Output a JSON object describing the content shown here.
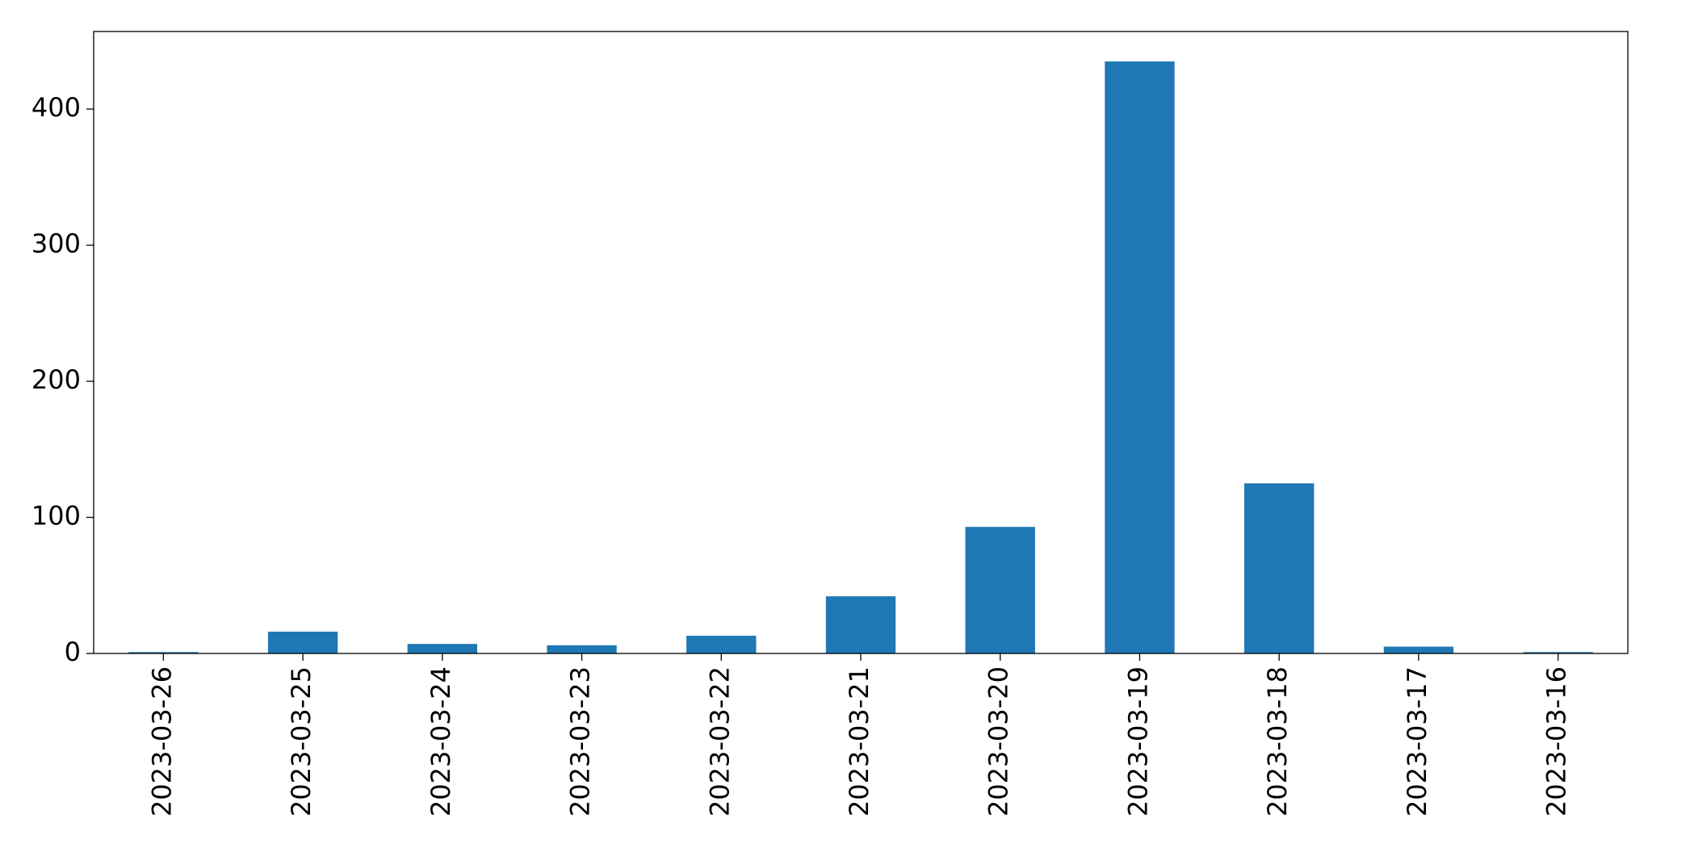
{
  "chart_data": {
    "type": "bar",
    "categories": [
      "2023-03-26",
      "2023-03-25",
      "2023-03-24",
      "2023-03-23",
      "2023-03-22",
      "2023-03-21",
      "2023-03-20",
      "2023-03-19",
      "2023-03-18",
      "2023-03-17",
      "2023-03-16"
    ],
    "values": [
      1,
      16,
      7,
      6,
      13,
      42,
      93,
      435,
      125,
      5,
      1
    ],
    "color": "#1f77b4",
    "ylim": [
      0,
      457
    ],
    "yticks": [
      0,
      100,
      200,
      300,
      400
    ],
    "grid": false
  }
}
